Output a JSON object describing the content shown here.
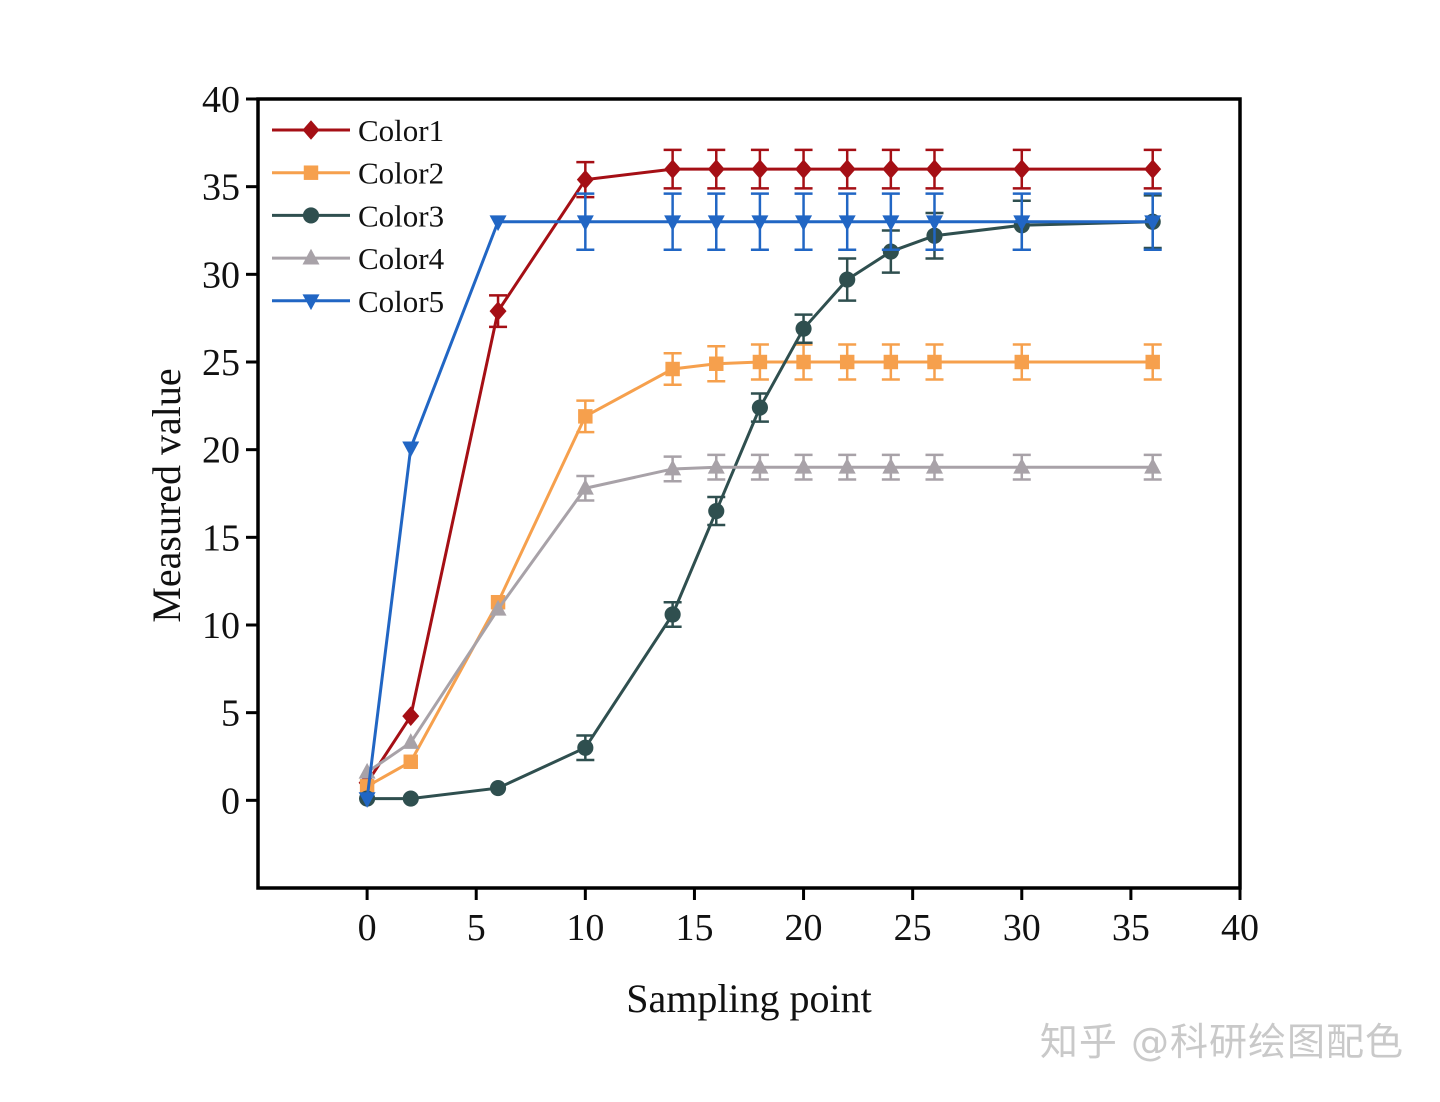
{
  "watermark": "知乎 @科研绘图配色",
  "chart_data": {
    "type": "line",
    "xlabel": "Sampling point",
    "ylabel": "Measured value",
    "xlim": [
      -5,
      40
    ],
    "ylim": [
      -5,
      40
    ],
    "xticks": [
      0,
      5,
      10,
      15,
      20,
      25,
      30,
      35,
      40
    ],
    "yticks": [
      0,
      5,
      10,
      15,
      20,
      25,
      30,
      35,
      40
    ],
    "grid": false,
    "legend_position": "top-left",
    "x": [
      0,
      2,
      6,
      10,
      14,
      16,
      18,
      20,
      22,
      24,
      26,
      30,
      36
    ],
    "series": [
      {
        "name": "Color1",
        "color": "#a50f15",
        "marker": "diamond",
        "values": [
          1.0,
          4.8,
          27.9,
          35.4,
          36.0,
          36.0,
          36.0,
          36.0,
          36.0,
          36.0,
          36.0,
          36.0,
          36.0
        ],
        "errors": [
          0,
          0,
          0.9,
          1.0,
          1.1,
          1.1,
          1.1,
          1.1,
          1.1,
          1.1,
          1.1,
          1.1,
          1.1
        ]
      },
      {
        "name": "Color2",
        "color": "#f6a04d",
        "marker": "square",
        "values": [
          0.8,
          2.2,
          11.3,
          21.9,
          24.6,
          24.9,
          25.0,
          25.0,
          25.0,
          25.0,
          25.0,
          25.0,
          25.0
        ],
        "errors": [
          0,
          0,
          0,
          0.9,
          0.9,
          1.0,
          1.0,
          1.0,
          1.0,
          1.0,
          1.0,
          1.0,
          1.0
        ]
      },
      {
        "name": "Color3",
        "color": "#2f4f4f",
        "marker": "circle",
        "values": [
          0.1,
          0.1,
          0.7,
          3.0,
          10.6,
          16.5,
          22.4,
          26.9,
          29.7,
          31.3,
          32.2,
          32.8,
          33.0
        ],
        "errors": [
          0,
          0,
          0,
          0.7,
          0.7,
          0.8,
          0.8,
          0.8,
          1.2,
          1.2,
          1.3,
          1.4,
          1.5
        ]
      },
      {
        "name": "Color4",
        "color": "#a8a2a8",
        "marker": "triangle-up",
        "values": [
          1.6,
          3.3,
          10.9,
          17.8,
          18.9,
          19.0,
          19.0,
          19.0,
          19.0,
          19.0,
          19.0,
          19.0,
          19.0
        ],
        "errors": [
          0,
          0,
          0,
          0.7,
          0.7,
          0.7,
          0.7,
          0.7,
          0.7,
          0.7,
          0.7,
          0.7,
          0.7
        ]
      },
      {
        "name": "Color5",
        "color": "#2166c4",
        "marker": "triangle-down",
        "values": [
          0.1,
          20.1,
          33.0,
          33.0,
          33.0,
          33.0,
          33.0,
          33.0,
          33.0,
          33.0,
          33.0,
          33.0,
          33.0
        ],
        "errors": [
          0,
          0,
          0,
          1.6,
          1.6,
          1.6,
          1.6,
          1.6,
          1.6,
          1.6,
          1.6,
          1.6,
          1.6
        ]
      }
    ]
  }
}
